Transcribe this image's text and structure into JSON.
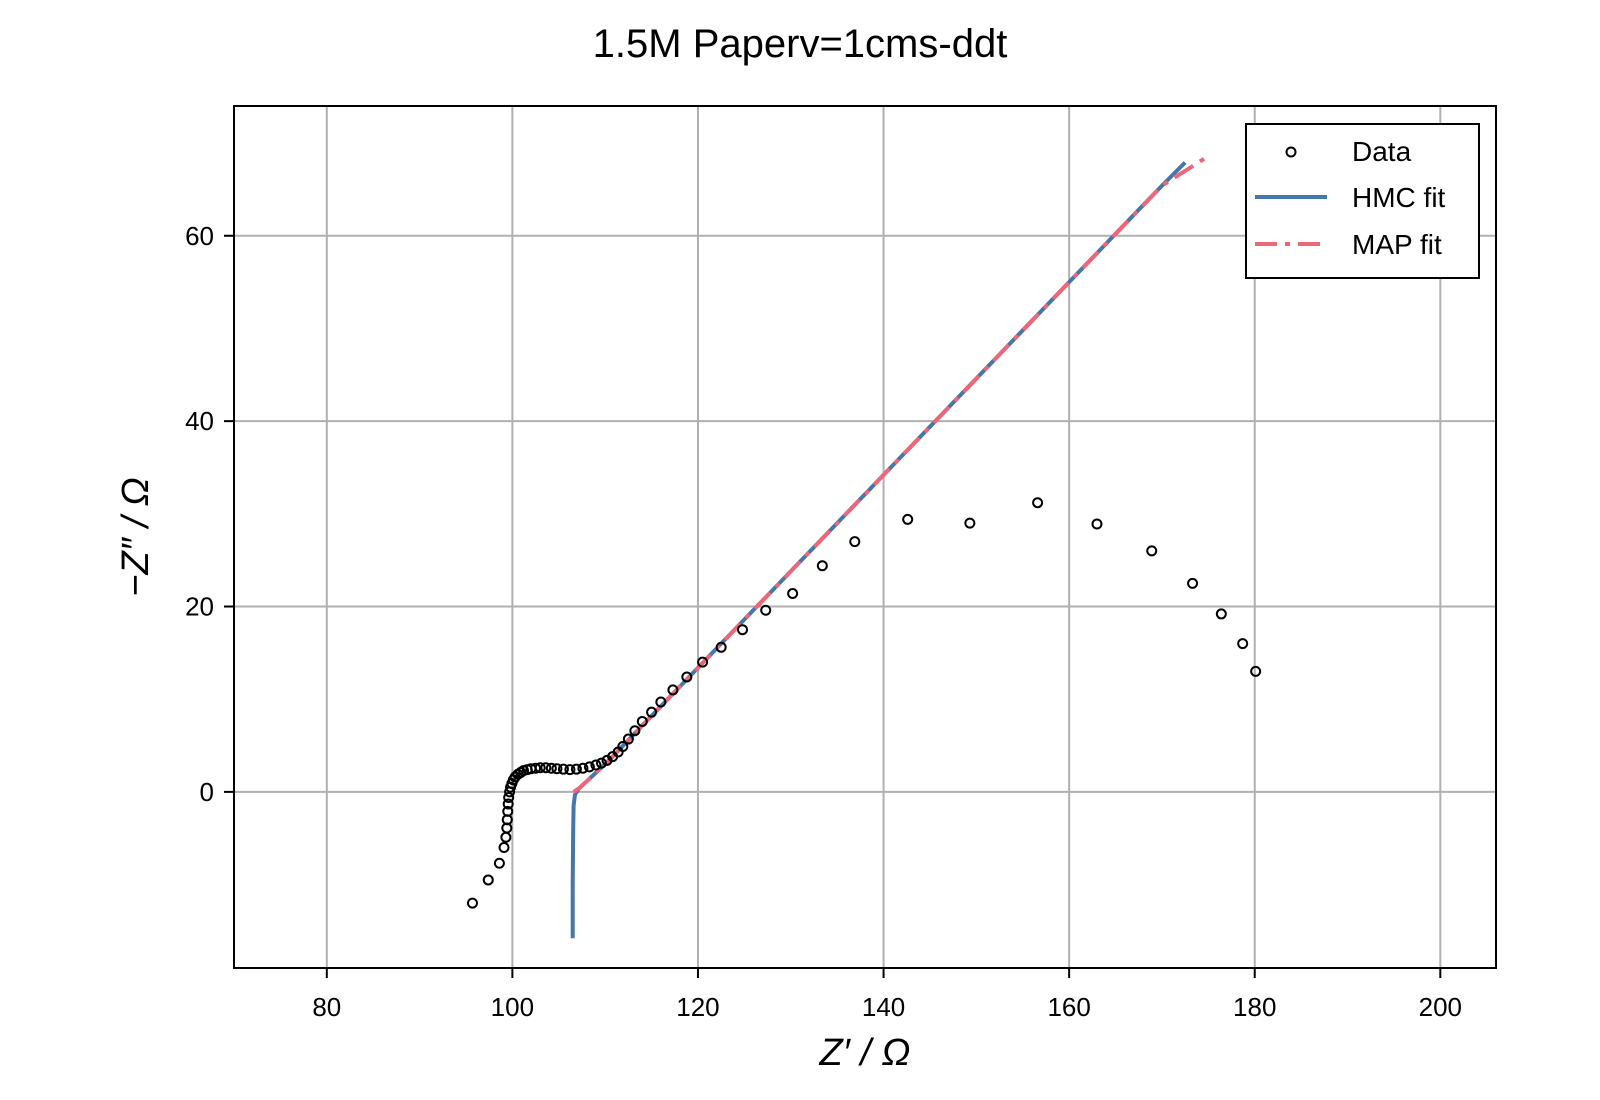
{
  "chart_data": {
    "type": "scatter",
    "title": "1.5M Paperv=1cms-ddt",
    "xlabel": "Z′ / Ω",
    "ylabel": "−Z″ / Ω",
    "xlim": [
      70,
      206
    ],
    "ylim": [
      -19,
      74
    ],
    "xticks": [
      80,
      100,
      120,
      140,
      160,
      180,
      200
    ],
    "yticks": [
      0,
      20,
      40,
      60
    ],
    "grid": true,
    "legend_position": "top-right",
    "series": [
      {
        "name": "Data",
        "kind": "scatter",
        "color": "#000000",
        "x": [
          95.7,
          97.4,
          98.6,
          99.1,
          99.3,
          99.4,
          99.45,
          99.5,
          99.55,
          99.6,
          99.7,
          99.8,
          99.95,
          100.1,
          100.3,
          100.6,
          100.9,
          101.2,
          101.6,
          102.0,
          102.5,
          103.0,
          103.6,
          104.2,
          104.8,
          105.5,
          106.2,
          106.9,
          107.6,
          108.3,
          109.0,
          109.6,
          110.2,
          110.8,
          111.4,
          111.9,
          112.5,
          113.2,
          114.0,
          115.0,
          116.0,
          117.3,
          118.8,
          120.5,
          122.5,
          124.8,
          127.3,
          130.2,
          133.4,
          136.9,
          142.6,
          149.3,
          156.6,
          163.0,
          168.9,
          173.3,
          176.4,
          178.7,
          180.1
        ],
        "y": [
          -12.0,
          -9.5,
          -7.7,
          -6.0,
          -4.9,
          -3.9,
          -3.0,
          -2.1,
          -1.3,
          -0.6,
          0.0,
          0.5,
          0.9,
          1.3,
          1.6,
          1.9,
          2.1,
          2.3,
          2.4,
          2.5,
          2.55,
          2.6,
          2.6,
          2.55,
          2.5,
          2.45,
          2.4,
          2.45,
          2.55,
          2.7,
          2.9,
          3.1,
          3.4,
          3.8,
          4.3,
          4.9,
          5.7,
          6.6,
          7.6,
          8.6,
          9.7,
          11.0,
          12.4,
          14.0,
          15.6,
          17.5,
          19.6,
          21.4,
          24.4,
          27.0,
          29.4,
          29.0,
          31.2,
          28.9,
          26.0,
          22.5,
          19.2,
          16.0,
          13.0
        ]
      },
      {
        "name": "HMC fit",
        "kind": "line",
        "color": "#4477aa",
        "x": [
          106.5,
          106.5,
          106.55,
          106.6,
          106.75,
          107.2,
          108.3,
          110.5,
          115.0,
          120.0,
          130.0,
          140.0,
          150.0,
          160.0,
          170.0,
          172.5
        ],
        "y": [
          -15.8,
          -10.0,
          -4.0,
          -1.5,
          -0.3,
          0.4,
          1.4,
          3.5,
          8.2,
          13.4,
          23.8,
          34.2,
          44.6,
          55.0,
          65.4,
          67.9
        ]
      },
      {
        "name": "MAP fit",
        "kind": "dashdot",
        "color": "#ee6677",
        "x": [
          106.6,
          107.2,
          108.3,
          110.5,
          115.0,
          120.0,
          130.0,
          140.0,
          150.0,
          160.0,
          170.0,
          175.0
        ],
        "y": [
          0.0,
          0.4,
          1.4,
          3.5,
          8.2,
          13.4,
          23.8,
          34.2,
          44.6,
          55.0,
          65.4,
          68.6
        ]
      }
    ]
  }
}
